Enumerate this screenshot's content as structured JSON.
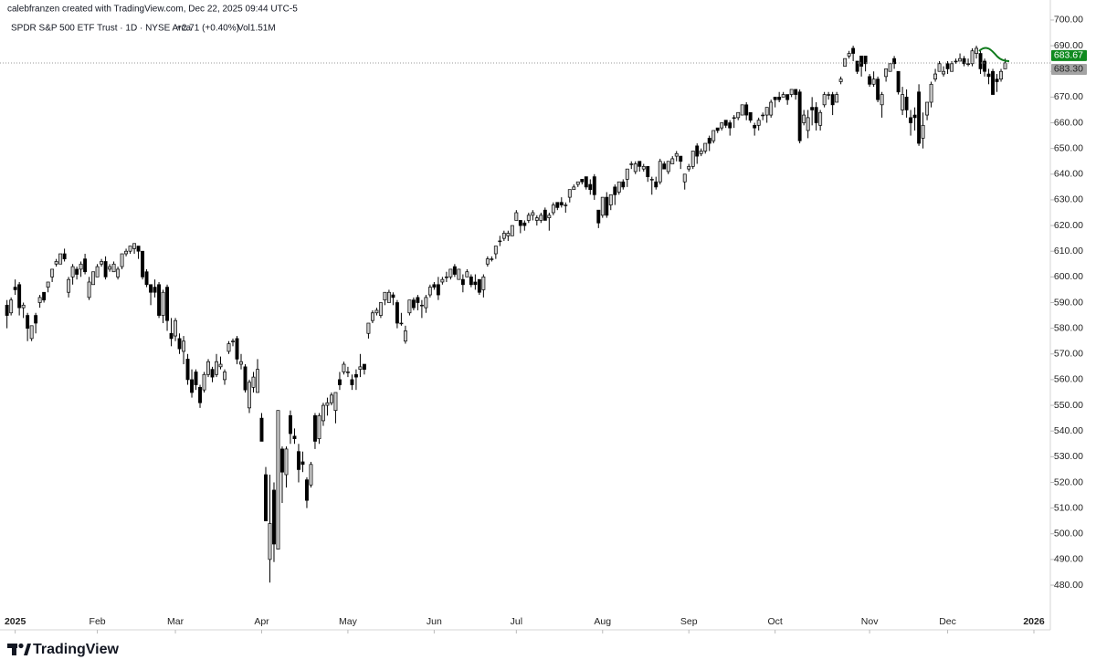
{
  "chart_data": {
    "type": "candlestick",
    "credit": "calebfranzen created with TradingView.com, Dec 22, 2025 09:44 UTC-5",
    "symbol": "SPDR S&P 500 ETF Trust · 1D · NYSE Arca",
    "change": "+2.71 (+0.40%)",
    "volume": "Vol1.51M",
    "brand": "TradingView",
    "up_color": "#cfcfcf",
    "down_color": "#000000",
    "xlim": [
      -1.7,
      254
    ],
    "ylim": [
      462.6,
      707.8
    ],
    "xticks": [
      {
        "value": 2,
        "label": "2025"
      },
      {
        "value": 22,
        "label": "Feb"
      },
      {
        "value": 41,
        "label": "Mar"
      },
      {
        "value": 62,
        "label": "Apr"
      },
      {
        "value": 83,
        "label": "May"
      },
      {
        "value": 104,
        "label": "Jun"
      },
      {
        "value": 124,
        "label": "Jul"
      },
      {
        "value": 145,
        "label": "Aug"
      },
      {
        "value": 166,
        "label": "Sep"
      },
      {
        "value": 187,
        "label": "Oct"
      },
      {
        "value": 210,
        "label": "Nov"
      },
      {
        "value": 229,
        "label": "Dec"
      },
      {
        "value": 250,
        "label": "2026"
      }
    ],
    "yticks": [
      {
        "value": 480,
        "label": "480.00"
      },
      {
        "value": 490,
        "label": "490.00"
      },
      {
        "value": 500,
        "label": "500.00"
      },
      {
        "value": 510,
        "label": "510.00"
      },
      {
        "value": 520,
        "label": "520.00"
      },
      {
        "value": 530,
        "label": "530.00"
      },
      {
        "value": 540,
        "label": "540.00"
      },
      {
        "value": 550,
        "label": "550.00"
      },
      {
        "value": 560,
        "label": "560.00"
      },
      {
        "value": 570,
        "label": "570.00"
      },
      {
        "value": 580,
        "label": "580.00"
      },
      {
        "value": 590,
        "label": "590.00"
      },
      {
        "value": 600,
        "label": "600.00"
      },
      {
        "value": 610,
        "label": "610.00"
      },
      {
        "value": 620,
        "label": "620.00"
      },
      {
        "value": 630,
        "label": "630.00"
      },
      {
        "value": 640,
        "label": "640.00"
      },
      {
        "value": 650,
        "label": "650.00"
      },
      {
        "value": 660,
        "label": "660.00"
      },
      {
        "value": 670,
        "label": "670.00"
      },
      {
        "value": 680,
        "label": "680.00"
      },
      {
        "value": 690,
        "label": "690.00"
      },
      {
        "value": 700,
        "label": "700.00"
      }
    ],
    "price_labels": [
      {
        "value": 683.67,
        "color": "#0f8a1f",
        "text_color": "#ffffff"
      },
      {
        "value": 683.3,
        "label": "683.30",
        "color": "#a3a3a3",
        "text_color": "#222222"
      }
    ],
    "candles": [
      [
        589,
        591,
        580,
        585
      ],
      [
        586,
        592,
        585,
        591
      ],
      [
        596,
        599,
        593,
        595
      ],
      [
        597,
        598,
        585,
        588
      ],
      [
        588,
        590,
        584,
        589
      ],
      [
        585,
        586,
        575,
        580
      ],
      [
        576,
        581,
        575,
        581
      ],
      [
        585,
        586,
        578,
        582
      ],
      [
        590,
        593,
        588,
        592
      ],
      [
        594,
        594,
        590,
        591
      ],
      [
        596,
        598,
        594,
        598
      ],
      [
        600,
        603,
        598,
        603
      ],
      [
        605,
        607,
        604,
        606
      ],
      [
        605,
        609,
        605,
        609
      ],
      [
        609,
        611,
        606,
        607
      ],
      [
        594,
        600,
        592,
        599
      ],
      [
        600,
        605,
        597,
        604
      ],
      [
        603,
        604,
        599,
        601
      ],
      [
        603,
        606,
        600,
        605
      ],
      [
        607,
        609,
        601,
        602
      ],
      [
        592,
        600,
        591,
        598
      ],
      [
        597,
        602,
        597,
        602
      ],
      [
        600,
        605,
        600,
        604
      ],
      [
        605,
        607,
        604,
        606
      ],
      [
        606,
        608,
        599,
        600
      ],
      [
        603,
        605,
        602,
        604
      ],
      [
        602,
        606,
        602,
        605
      ],
      [
        600,
        604,
        599,
        603
      ],
      [
        604,
        609,
        603,
        609
      ],
      [
        609,
        611,
        608,
        610
      ],
      [
        610,
        612,
        609,
        612
      ],
      [
        611,
        613,
        609,
        613
      ],
      [
        612,
        612,
        607,
        610
      ],
      [
        610,
        610,
        599,
        600
      ],
      [
        602,
        603,
        596,
        597
      ],
      [
        597,
        597,
        589,
        594
      ],
      [
        596,
        599,
        592,
        594
      ],
      [
        597,
        598,
        584,
        585
      ],
      [
        585,
        595,
        582,
        594
      ],
      [
        596,
        597,
        579,
        583
      ],
      [
        578,
        584,
        573,
        576
      ],
      [
        577,
        584,
        575,
        583
      ],
      [
        576,
        578,
        570,
        572
      ],
      [
        571,
        577,
        566,
        575
      ],
      [
        568,
        570,
        558,
        560
      ],
      [
        560,
        564,
        553,
        555
      ],
      [
        563,
        564,
        556,
        558
      ],
      [
        557,
        558,
        549,
        551
      ],
      [
        556,
        563,
        555,
        562
      ],
      [
        562,
        568,
        561,
        567
      ],
      [
        564,
        565,
        559,
        561
      ],
      [
        562,
        570,
        561,
        567
      ],
      [
        565,
        569,
        564,
        566
      ],
      [
        560,
        564,
        558,
        563
      ],
      [
        571,
        575,
        570,
        574
      ],
      [
        575,
        576,
        573,
        575
      ],
      [
        576,
        577,
        566,
        568
      ],
      [
        566,
        570,
        564,
        567
      ],
      [
        565,
        566,
        555,
        556
      ],
      [
        549,
        560,
        547,
        559
      ],
      [
        557,
        563,
        555,
        561
      ],
      [
        555,
        568,
        555,
        564
      ],
      [
        545,
        547,
        536,
        536
      ],
      [
        523,
        526,
        505,
        505
      ],
      [
        490,
        523,
        481,
        504
      ],
      [
        517,
        520,
        489,
        496
      ],
      [
        494,
        548,
        494,
        548
      ],
      [
        533,
        534,
        512,
        524
      ],
      [
        523,
        534,
        518,
        533
      ],
      [
        546,
        548,
        535,
        539
      ],
      [
        538,
        541,
        535,
        537
      ],
      [
        532,
        535,
        520,
        525
      ],
      [
        528,
        532,
        524,
        527
      ],
      [
        521,
        522,
        510,
        513
      ],
      [
        519,
        528,
        518,
        527
      ],
      [
        546,
        547,
        533,
        536
      ],
      [
        537,
        547,
        535,
        546
      ],
      [
        544,
        551,
        542,
        550
      ],
      [
        550,
        553,
        546,
        551
      ],
      [
        551,
        555,
        550,
        554
      ],
      [
        548,
        555,
        543,
        555
      ],
      [
        560,
        563,
        556,
        558
      ],
      [
        563,
        567,
        562,
        566
      ],
      [
        563,
        565,
        561,
        563
      ],
      [
        560,
        562,
        556,
        558
      ],
      [
        562,
        564,
        556,
        561
      ],
      [
        564,
        570,
        561,
        565
      ],
      [
        566,
        566,
        562,
        564
      ],
      [
        578,
        582,
        576,
        582
      ],
      [
        583,
        587,
        582,
        586
      ],
      [
        586,
        588,
        585,
        587
      ],
      [
        585,
        590,
        584,
        590
      ],
      [
        591,
        594,
        589,
        594
      ],
      [
        590,
        595,
        590,
        594
      ],
      [
        593,
        594,
        589,
        592
      ],
      [
        590,
        591,
        580,
        582
      ],
      [
        582,
        586,
        581,
        582
      ],
      [
        575,
        581,
        574,
        579
      ],
      [
        586,
        591,
        585,
        591
      ],
      [
        591,
        592,
        587,
        588
      ],
      [
        592,
        593,
        587,
        590
      ],
      [
        589,
        591,
        584,
        589
      ],
      [
        588,
        593,
        586,
        592
      ],
      [
        593,
        597,
        592,
        596
      ],
      [
        597,
        598,
        595,
        596
      ],
      [
        597,
        600,
        591,
        593
      ],
      [
        598,
        600,
        597,
        599
      ],
      [
        600,
        602,
        598,
        600
      ],
      [
        600,
        603,
        599,
        603
      ],
      [
        604,
        605,
        600,
        601
      ],
      [
        599,
        603,
        599,
        603
      ],
      [
        599,
        601,
        594,
        597
      ],
      [
        600,
        603,
        600,
        602
      ],
      [
        600,
        601,
        596,
        597
      ],
      [
        598,
        601,
        595,
        597
      ],
      [
        599,
        599,
        593,
        594
      ],
      [
        595,
        601,
        592,
        600
      ],
      [
        605,
        608,
        604,
        607
      ],
      [
        607,
        608,
        606,
        607
      ],
      [
        609,
        612,
        607,
        612
      ],
      [
        614,
        616,
        612,
        614
      ],
      [
        615,
        618,
        614,
        617
      ],
      [
        616,
        618,
        614,
        617
      ],
      [
        616,
        620,
        616,
        620
      ],
      [
        622,
        626,
        622,
        625
      ],
      [
        622,
        622,
        617,
        620
      ],
      [
        621,
        622,
        618,
        620
      ],
      [
        622,
        625,
        621,
        624
      ],
      [
        624,
        626,
        622,
        625
      ],
      [
        622,
        624,
        620,
        623
      ],
      [
        622,
        625,
        621,
        624
      ],
      [
        626,
        627,
        622,
        622
      ],
      [
        623,
        625,
        618,
        624
      ],
      [
        625,
        629,
        624,
        628
      ],
      [
        629,
        629,
        626,
        627
      ],
      [
        629,
        631,
        627,
        628
      ],
      [
        628,
        629,
        625,
        628
      ],
      [
        631,
        634,
        629,
        634
      ],
      [
        634,
        636,
        634,
        635
      ],
      [
        636,
        637,
        635,
        637
      ],
      [
        638,
        638,
        636,
        637
      ],
      [
        639,
        639,
        634,
        635
      ],
      [
        636,
        638,
        632,
        634
      ],
      [
        639,
        640,
        630,
        632
      ],
      [
        626,
        626,
        619,
        621
      ],
      [
        624,
        631,
        623,
        631
      ],
      [
        631,
        633,
        623,
        624
      ],
      [
        628,
        632,
        626,
        632
      ],
      [
        635,
        636,
        628,
        632
      ],
      [
        633,
        637,
        632,
        637
      ],
      [
        637,
        638,
        634,
        635
      ],
      [
        638,
        642,
        635,
        642
      ],
      [
        644,
        645,
        642,
        644
      ],
      [
        641,
        645,
        640,
        644
      ],
      [
        645,
        645,
        641,
        643
      ],
      [
        642,
        644,
        641,
        643
      ],
      [
        643,
        643,
        637,
        639
      ],
      [
        638,
        639,
        632,
        638
      ],
      [
        637,
        639,
        634,
        635
      ],
      [
        637,
        646,
        636,
        645
      ],
      [
        644,
        645,
        642,
        642
      ],
      [
        641,
        645,
        640,
        645
      ],
      [
        644,
        647,
        644,
        646
      ],
      [
        647,
        649,
        645,
        648
      ],
      [
        647,
        647,
        642,
        645
      ],
      [
        637,
        640,
        634,
        640
      ],
      [
        642,
        644,
        641,
        643
      ],
      [
        643,
        649,
        642,
        649
      ],
      [
        651,
        652,
        644,
        647
      ],
      [
        648,
        650,
        647,
        649
      ],
      [
        649,
        652,
        648,
        652
      ],
      [
        654,
        655,
        649,
        652
      ],
      [
        653,
        657,
        652,
        657
      ],
      [
        658,
        658,
        656,
        657
      ],
      [
        658,
        660,
        657,
        660
      ],
      [
        661,
        661,
        658,
        659
      ],
      [
        660,
        661,
        655,
        658
      ],
      [
        662,
        663,
        658,
        662
      ],
      [
        662,
        664,
        661,
        664
      ],
      [
        663,
        667,
        663,
        667
      ],
      [
        667,
        668,
        661,
        663
      ],
      [
        664,
        664,
        660,
        661
      ],
      [
        659,
        660,
        655,
        658
      ],
      [
        659,
        662,
        657,
        661
      ],
      [
        663,
        664,
        661,
        663
      ],
      [
        663,
        666,
        660,
        666
      ],
      [
        663,
        669,
        662,
        668
      ],
      [
        670,
        670,
        666,
        669
      ],
      [
        670,
        672,
        668,
        669
      ],
      [
        670,
        672,
        670,
        671
      ],
      [
        671,
        671,
        667,
        669
      ],
      [
        671,
        673,
        670,
        673
      ],
      [
        673,
        673,
        669,
        671
      ],
      [
        672,
        673,
        652,
        653
      ],
      [
        660,
        665,
        659,
        663
      ],
      [
        657,
        665,
        654,
        662
      ],
      [
        666,
        670,
        659,
        665
      ],
      [
        666,
        668,
        657,
        660
      ],
      [
        659,
        665,
        657,
        664
      ],
      [
        667,
        672,
        666,
        671
      ],
      [
        671,
        672,
        669,
        671
      ],
      [
        671,
        672,
        663,
        667
      ],
      [
        668,
        672,
        668,
        671
      ],
      [
        676,
        678,
        675,
        677
      ],
      [
        682,
        685,
        682,
        685
      ],
      [
        686,
        688,
        685,
        687
      ],
      [
        689,
        690,
        684,
        687
      ],
      [
        684,
        684,
        679,
        680
      ],
      [
        686,
        686,
        678,
        682
      ],
      [
        686,
        686,
        680,
        683
      ],
      [
        678,
        679,
        674,
        675
      ],
      [
        675,
        680,
        674,
        677
      ],
      [
        677,
        678,
        668,
        669
      ],
      [
        667,
        672,
        662,
        671
      ],
      [
        678,
        681,
        676,
        681
      ],
      [
        680,
        683,
        680,
        683
      ],
      [
        685,
        686,
        681,
        683
      ],
      [
        680,
        680,
        671,
        672
      ],
      [
        665,
        674,
        663,
        671
      ],
      [
        670,
        673,
        662,
        665
      ],
      [
        662,
        665,
        655,
        660
      ],
      [
        663,
        666,
        657,
        662
      ],
      [
        672,
        675,
        651,
        652
      ],
      [
        654,
        664,
        650,
        659
      ],
      [
        663,
        668,
        661,
        668
      ],
      [
        668,
        676,
        666,
        675
      ],
      [
        677,
        681,
        676,
        679
      ],
      [
        680,
        684,
        680,
        683
      ],
      [
        679,
        682,
        678,
        680
      ],
      [
        683,
        684,
        679,
        681
      ],
      [
        680,
        684,
        680,
        683
      ],
      [
        684,
        685,
        683,
        684
      ],
      [
        684,
        687,
        684,
        685
      ],
      [
        685,
        686,
        682,
        683
      ],
      [
        683,
        685,
        682,
        683
      ],
      [
        683,
        689,
        682,
        688
      ],
      [
        687,
        690,
        685,
        689
      ],
      [
        687,
        688,
        679,
        681
      ],
      [
        684,
        685,
        678,
        680
      ],
      [
        679,
        681,
        675,
        678
      ],
      [
        680,
        681,
        671,
        671
      ],
      [
        677,
        679,
        672,
        676
      ],
      [
        677,
        681,
        676,
        680
      ],
      [
        681,
        685,
        681,
        683.3
      ]
    ]
  }
}
